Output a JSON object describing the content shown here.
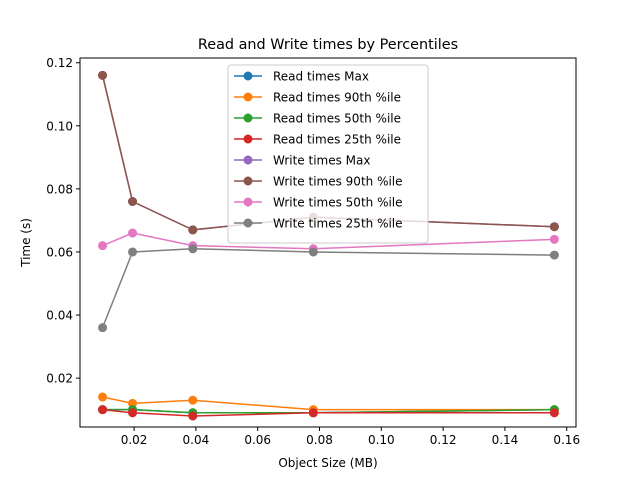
{
  "chart_data": {
    "type": "line",
    "title": "Read and Write times by Percentiles",
    "xlabel": "Object Size (MB)",
    "ylabel": "Time (s)",
    "xlim": [
      0.0025,
      0.163
    ],
    "ylim": [
      0.0045,
      0.1215
    ],
    "xticks": [
      0.02,
      0.04,
      0.06,
      0.08,
      0.1,
      0.12,
      0.14,
      0.16
    ],
    "xtick_labels": [
      "0.02",
      "0.04",
      "0.06",
      "0.08",
      "0.10",
      "0.12",
      "0.14",
      "0.16"
    ],
    "yticks": [
      0.02,
      0.04,
      0.06,
      0.08,
      0.1,
      0.12
    ],
    "ytick_labels": [
      "0.02",
      "0.04",
      "0.06",
      "0.08",
      "0.10",
      "0.12"
    ],
    "grid": false,
    "legend_position": "upper-center",
    "x": [
      0.0098,
      0.0195,
      0.039,
      0.078,
      0.156
    ],
    "series": [
      {
        "name": "Read times Max",
        "color": "#1f77b4",
        "values": [
          0.01,
          0.01,
          0.009,
          0.009,
          0.01
        ]
      },
      {
        "name": "Read times 90th %ile",
        "color": "#ff7f0e",
        "values": [
          0.014,
          0.012,
          0.013,
          0.01,
          0.01
        ]
      },
      {
        "name": "Read times 50th %ile",
        "color": "#2ca02c",
        "values": [
          0.01,
          0.01,
          0.009,
          0.009,
          0.01
        ]
      },
      {
        "name": "Read times 25th %ile",
        "color": "#d62728",
        "values": [
          0.01,
          0.009,
          0.008,
          0.009,
          0.009
        ]
      },
      {
        "name": "Write times Max",
        "color": "#9467bd",
        "values": [
          0.116,
          0.076,
          0.067,
          0.071,
          0.068
        ]
      },
      {
        "name": "Write times 90th %ile",
        "color": "#8c564b",
        "values": [
          0.116,
          0.076,
          0.067,
          0.071,
          0.068
        ]
      },
      {
        "name": "Write times 50th %ile",
        "color": "#e377c2",
        "values": [
          0.062,
          0.066,
          0.062,
          0.061,
          0.064
        ]
      },
      {
        "name": "Write times 25th %ile",
        "color": "#7f7f7f",
        "values": [
          0.036,
          0.06,
          0.061,
          0.06,
          0.059
        ]
      }
    ]
  }
}
